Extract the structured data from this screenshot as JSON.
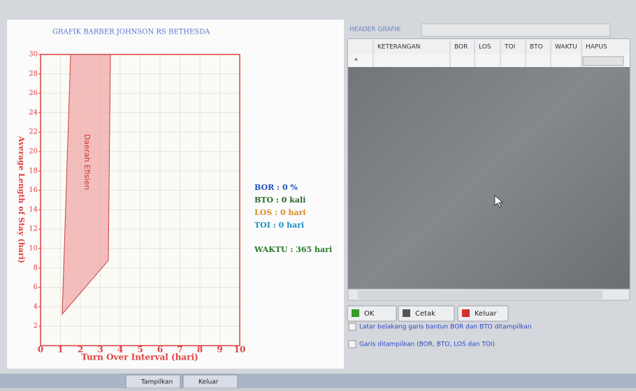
{
  "window": {
    "chart": {
      "title": "GRAFIK BARBER JOHNSON RS BETHESDA",
      "x_label": "Turn Over Interval (hari)",
      "y_label": "Average Length of Stay (hari)",
      "region_label": "Daerah Efisien",
      "xlim": [
        0,
        10
      ],
      "ylim": [
        0,
        30
      ],
      "xticks": [
        0,
        1,
        2,
        3,
        4,
        5,
        6,
        7,
        8,
        9,
        10
      ],
      "yticks": [
        2,
        4,
        6,
        8,
        10,
        12,
        14,
        16,
        18,
        20,
        22,
        24,
        26,
        28,
        30
      ]
    },
    "stats": [
      "BOR : 0 %",
      "BTO : 0 kali",
      "LOS : 0 hari",
      "TOI : 0 hari"
    ],
    "waktu": "WAKTU : 365 hari",
    "header_label": "HEADER GRAFIK",
    "table": {
      "columns": [
        "KETERANGAN",
        "BOR",
        "LOS",
        "TOI",
        "BTO",
        "WAKTU",
        "HAPUS"
      ],
      "new_row_marker": "*"
    },
    "buttons": [
      "OK",
      "Cetak",
      "Keluar"
    ],
    "checkboxes": [
      "Latar belakang garis bantun BOR dan BTO ditampilkan",
      "Garis ditampilkan (BOR, BTO, LOS dan TOI)"
    ],
    "tabs": [
      "Tampilkan",
      "Keluar"
    ]
  }
}
